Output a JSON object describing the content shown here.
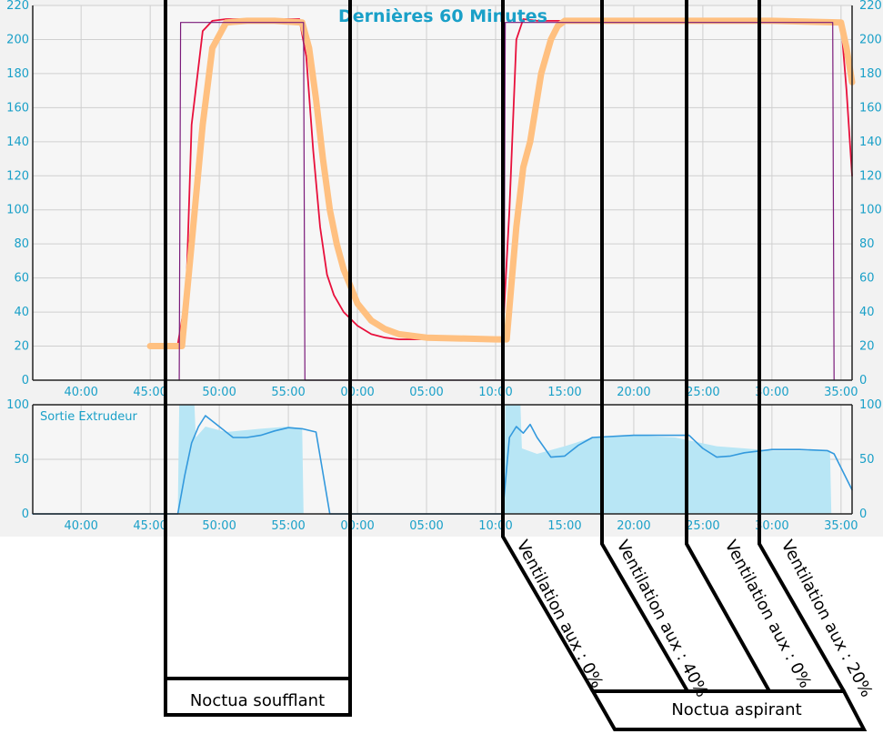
{
  "chart_data": [
    {
      "type": "line",
      "title": "Dernières 60 Minutes",
      "x_ticks": [
        "40:00",
        "45:00",
        "50:00",
        "55:00",
        "00:00",
        "05:00",
        "10:00",
        "15:00",
        "20:00",
        "25:00",
        "30:00",
        "35:00"
      ],
      "x_range_minutes": [
        36.5,
        95.8
      ],
      "y_ticks": [
        0,
        20,
        40,
        60,
        80,
        100,
        120,
        140,
        160,
        180,
        200,
        220
      ],
      "ylim": [
        0,
        220
      ],
      "y_axis_both_sides": true,
      "grid": true,
      "series": [
        {
          "color": "#e8103c",
          "x": [
            45.0,
            47.0,
            47.6,
            48.0,
            48.8,
            49.5,
            50.5,
            52.0,
            54.0,
            55.8,
            56.3,
            56.8,
            57.3,
            57.8,
            58.3,
            59.0,
            60.0,
            61.0,
            62.0,
            63.0,
            65.0,
            70.0,
            70.5,
            71.0,
            71.5,
            72.0,
            73.0,
            75.0,
            80.0,
            85.0,
            90.0,
            95.0,
            95.4,
            95.8
          ],
          "values": [
            21,
            21,
            50,
            150,
            205,
            211,
            212,
            212,
            212,
            212,
            190,
            135,
            90,
            62,
            50,
            40,
            32,
            27,
            25,
            24,
            24,
            23,
            24,
            100,
            200,
            212,
            211,
            211,
            211,
            211,
            211,
            210,
            170,
            120
          ]
        },
        {
          "color": "#ffc080",
          "x": [
            45.0,
            47.3,
            48.0,
            48.8,
            49.5,
            50.5,
            52.0,
            54.0,
            56.0,
            56.5,
            57.0,
            57.5,
            58.0,
            58.5,
            59.0,
            60.0,
            61.0,
            62.0,
            63.0,
            65.0,
            70.0,
            70.8,
            71.5,
            72.0,
            72.5,
            73.3,
            74.0,
            74.5,
            75.0,
            80.0,
            85.0,
            90.0,
            95.0,
            95.4,
            95.8
          ],
          "values": [
            20,
            20,
            80,
            150,
            195,
            210,
            211,
            211,
            210,
            195,
            165,
            130,
            100,
            80,
            65,
            45,
            35,
            30,
            27,
            25,
            24,
            24,
            90,
            125,
            140,
            180,
            200,
            208,
            211,
            211,
            211,
            211,
            210,
            195,
            175
          ]
        },
        {
          "color": "#7a1a7a",
          "x": [
            47.1,
            47.2,
            47.3,
            56.0,
            56.1,
            56.2,
            70.6,
            70.7,
            70.8,
            94.3,
            94.4,
            94.5
          ],
          "values": [
            0,
            210,
            210,
            210,
            210,
            0,
            0,
            210,
            210,
            210,
            210,
            0
          ]
        }
      ]
    },
    {
      "type": "area",
      "title": "Sortie Extrudeur",
      "x_ticks": [
        "40:00",
        "45:00",
        "50:00",
        "55:00",
        "00:00",
        "05:00",
        "10:00",
        "15:00",
        "20:00",
        "25:00",
        "30:00",
        "35:00"
      ],
      "x_range_minutes": [
        36.5,
        95.8
      ],
      "y_ticks": [
        0,
        50,
        100
      ],
      "ylim": [
        0,
        100
      ],
      "y_axis_both_sides": true,
      "grid": true,
      "series": [
        {
          "color": "#b8e6f5",
          "x": [
            36.5,
            47.0,
            47.1,
            48.2,
            48.3,
            49.0,
            50.5,
            53.0,
            55.0,
            56.0,
            56.1,
            70.6,
            70.7,
            71.8,
            71.9,
            73.0,
            75.0,
            77.0,
            80.0,
            83.0,
            86.0,
            90.0,
            94.2,
            94.3,
            95.8
          ],
          "values": [
            0,
            0,
            100,
            100,
            70,
            80,
            75,
            78,
            80,
            78,
            0,
            0,
            100,
            100,
            60,
            55,
            62,
            70,
            72,
            70,
            62,
            58,
            58,
            0,
            0
          ]
        },
        {
          "color": "#3399dd",
          "x": [
            36.5,
            47.0,
            47.5,
            48.0,
            48.5,
            49.0,
            50.0,
            51.0,
            52.0,
            53.0,
            54.0,
            55.0,
            56.0,
            57.0,
            58.0,
            70.5,
            71.0,
            71.5,
            72.0,
            72.5,
            73.0,
            74.0,
            75.0,
            76.0,
            77.0,
            80.0,
            83.0,
            84.0,
            85.0,
            86.0,
            87.0,
            88.0,
            90.0,
            92.0,
            94.0,
            94.5,
            95.8
          ],
          "values": [
            0,
            0,
            35,
            65,
            80,
            90,
            80,
            70,
            70,
            72,
            76,
            79,
            78,
            75,
            0,
            0,
            70,
            80,
            74,
            82,
            70,
            52,
            53,
            63,
            70,
            72,
            72,
            72,
            60,
            52,
            53,
            56,
            59,
            59,
            58,
            55,
            22
          ]
        }
      ]
    }
  ],
  "annotations": {
    "group_left_label": "Noctua soufflant",
    "group_right_label": "Noctua aspirant",
    "rotated_labels": [
      "Ventilation aux : 0%",
      "Ventilation aux : 40%",
      "Ventilation aux : 0%",
      "Ventilation aux : 20%"
    ]
  }
}
